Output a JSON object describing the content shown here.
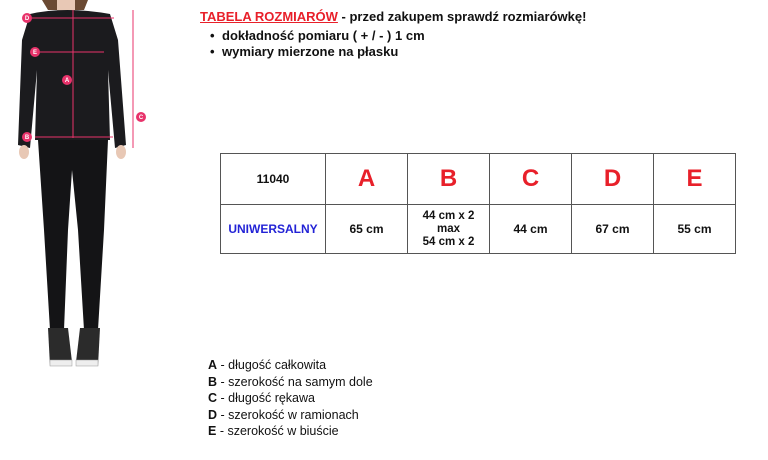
{
  "header": {
    "title": "TABELA ROZMIARÓW",
    "subtitle": " - przed zakupem sprawdź rozmiarówkę!",
    "bullets": [
      "dokładność pomiaru ( + / - ) 1 cm",
      "wymiary mierzone na płasku"
    ]
  },
  "figure": {
    "markers": [
      "D",
      "E",
      "A",
      "B",
      "C"
    ],
    "accent": "#e8336b"
  },
  "table": {
    "headers": [
      "11040",
      "A",
      "B",
      "C",
      "D",
      "E"
    ],
    "row": {
      "size": "UNIWERSALNY",
      "A": "65 cm",
      "B": [
        "44 cm x 2",
        "max",
        "54 cm x 2"
      ],
      "C": "44 cm",
      "D": "67 cm",
      "E": "55 cm"
    }
  },
  "legend": [
    {
      "key": "A",
      "text": " - długość całkowita"
    },
    {
      "key": "B",
      "text": " - szerokość na samym dole"
    },
    {
      "key": "C",
      "text": " - długość rękawa"
    },
    {
      "key": "D",
      "text": " - szerokość w ramionach"
    },
    {
      "key": "E",
      "text": " - szerokość w biuście"
    }
  ],
  "colors": {
    "red": "#e8202a",
    "blue": "#2323d6"
  }
}
